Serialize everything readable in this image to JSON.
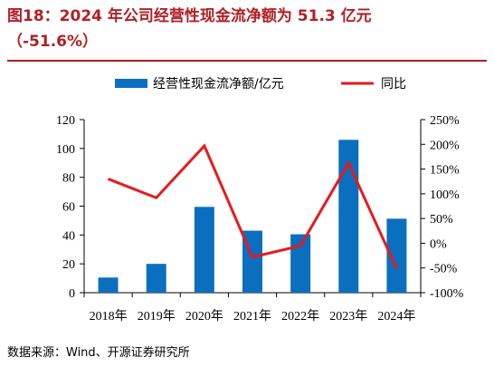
{
  "header": {
    "title_line1": "图18：2024 年公司经营性现金流净额为 51.3 亿元",
    "title_line2": "（-51.6%）"
  },
  "footer": {
    "source": "数据来源：Wind、开源证券研究所"
  },
  "colors": {
    "title": "#b01f24",
    "bar": "#0b6fc0",
    "line": "#e8191d"
  },
  "chart_data": {
    "type": "bar",
    "categories": [
      "2018年",
      "2019年",
      "2020年",
      "2021年",
      "2022年",
      "2023年",
      "2024年"
    ],
    "series": [
      {
        "name": "经营性现金流净额/亿元",
        "type": "bar",
        "axis": "left",
        "values": [
          10.5,
          20,
          59.5,
          43,
          40.5,
          106,
          51.3
        ]
      },
      {
        "name": "同比",
        "type": "line",
        "axis": "right",
        "values": [
          130,
          92,
          197,
          -28,
          -5,
          162,
          -51.6
        ]
      }
    ],
    "y_left": {
      "min": 0,
      "max": 120,
      "ticks": [
        0,
        20,
        40,
        60,
        80,
        100,
        120
      ]
    },
    "y_right": {
      "min": -100,
      "max": 250,
      "ticks": [
        -100,
        -50,
        0,
        50,
        100,
        150,
        200,
        250
      ],
      "tick_labels": [
        "-100%",
        "-50%",
        "0%",
        "50%",
        "100%",
        "150%",
        "200%",
        "250%"
      ]
    },
    "legend_position": "top",
    "grid": false
  }
}
